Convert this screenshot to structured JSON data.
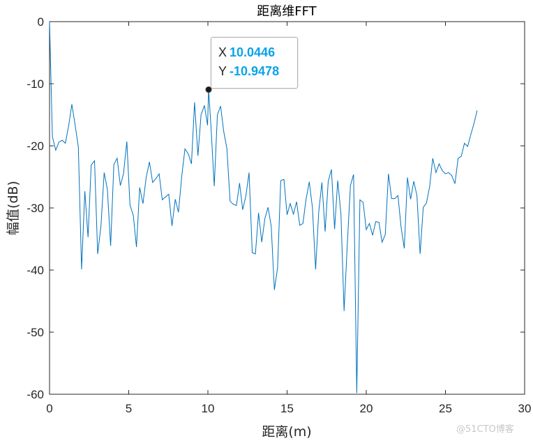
{
  "chart_data": {
    "type": "line",
    "title": "距离维FFT",
    "xlabel": "距离(m)",
    "ylabel": "幅值(dB)",
    "xlim": [
      0,
      30
    ],
    "ylim": [
      -60,
      0
    ],
    "xticks": [
      0,
      5,
      10,
      15,
      20,
      25,
      30
    ],
    "yticks": [
      0,
      -10,
      -20,
      -30,
      -40,
      -50,
      -60
    ],
    "grid": false,
    "line_color": "#0072bd",
    "series": [
      {
        "values": [
          [
            0,
            0
          ],
          [
            0.18,
            -18.5
          ],
          [
            0.39,
            -20.7
          ],
          [
            0.59,
            -19.4
          ],
          [
            0.8,
            -19.1
          ],
          [
            1.0,
            -19.6
          ],
          [
            1.21,
            -16.7
          ],
          [
            1.41,
            -13.3
          ],
          [
            1.61,
            -16.5
          ],
          [
            1.82,
            -20.2
          ],
          [
            2.02,
            -39.9
          ],
          [
            2.23,
            -27.3
          ],
          [
            2.43,
            -34.7
          ],
          [
            2.63,
            -23.1
          ],
          [
            2.84,
            -22.4
          ],
          [
            3.04,
            -37.4
          ],
          [
            3.25,
            -32.8
          ],
          [
            3.45,
            -24.3
          ],
          [
            3.65,
            -27.0
          ],
          [
            3.86,
            -36.1
          ],
          [
            4.06,
            -23.0
          ],
          [
            4.27,
            -22.0
          ],
          [
            4.47,
            -26.4
          ],
          [
            4.67,
            -24.5
          ],
          [
            4.88,
            -19.3
          ],
          [
            5.08,
            -29.5
          ],
          [
            5.29,
            -31.2
          ],
          [
            5.49,
            -36.3
          ],
          [
            5.69,
            -26.7
          ],
          [
            5.9,
            -29.3
          ],
          [
            6.1,
            -25.1
          ],
          [
            6.31,
            -22.6
          ],
          [
            6.51,
            -25.9
          ],
          [
            6.71,
            -25.3
          ],
          [
            6.92,
            -24.5
          ],
          [
            7.12,
            -28.7
          ],
          [
            7.33,
            -28.2
          ],
          [
            7.53,
            -27.8
          ],
          [
            7.73,
            -32.9
          ],
          [
            7.94,
            -28.6
          ],
          [
            8.14,
            -30.7
          ],
          [
            8.35,
            -24.9
          ],
          [
            8.55,
            -20.5
          ],
          [
            8.76,
            -21.3
          ],
          [
            8.96,
            -22.9
          ],
          [
            9.16,
            -13.0
          ],
          [
            9.37,
            -21.6
          ],
          [
            9.57,
            -15.0
          ],
          [
            9.78,
            -13.5
          ],
          [
            9.98,
            -16.7
          ],
          [
            10.0446,
            -10.9478
          ],
          [
            10.2,
            -17.1
          ],
          [
            10.4,
            -26.5
          ],
          [
            10.6,
            -15.0
          ],
          [
            10.8,
            -13.6
          ],
          [
            11.0,
            -17.7
          ],
          [
            11.2,
            -20.4
          ],
          [
            11.4,
            -28.9
          ],
          [
            11.6,
            -29.4
          ],
          [
            11.8,
            -29.6
          ],
          [
            12.0,
            -26.0
          ],
          [
            12.2,
            -30.3
          ],
          [
            12.4,
            -28.0
          ],
          [
            12.6,
            -24.3
          ],
          [
            12.8,
            -37.2
          ],
          [
            13.0,
            -37.4
          ],
          [
            13.2,
            -30.8
          ],
          [
            13.4,
            -35.5
          ],
          [
            13.6,
            -31.7
          ],
          [
            13.8,
            -29.9
          ],
          [
            14.0,
            -33.0
          ],
          [
            14.2,
            -43.2
          ],
          [
            14.4,
            -39.6
          ],
          [
            14.6,
            -25.6
          ],
          [
            14.8,
            -25.4
          ],
          [
            15.0,
            -31.1
          ],
          [
            15.2,
            -29.3
          ],
          [
            15.4,
            -31.0
          ],
          [
            15.6,
            -29.0
          ],
          [
            15.8,
            -32.8
          ],
          [
            16.0,
            -32.5
          ],
          [
            16.2,
            -28.6
          ],
          [
            16.4,
            -25.8
          ],
          [
            16.6,
            -29.9
          ],
          [
            16.8,
            -39.9
          ],
          [
            17.0,
            -30.6
          ],
          [
            17.2,
            -25.9
          ],
          [
            17.4,
            -33.8
          ],
          [
            17.6,
            -25.7
          ],
          [
            17.8,
            -23.8
          ],
          [
            18.0,
            -33.4
          ],
          [
            18.2,
            -25.6
          ],
          [
            18.4,
            -31.0
          ],
          [
            18.6,
            -46.6
          ],
          [
            18.8,
            -35.9
          ],
          [
            19.0,
            -26.4
          ],
          [
            19.2,
            -24.6
          ],
          [
            19.4,
            -59.8
          ],
          [
            19.6,
            -28.7
          ],
          [
            19.8,
            -29.1
          ],
          [
            20.0,
            -33.5
          ],
          [
            20.2,
            -32.5
          ],
          [
            20.4,
            -34.4
          ],
          [
            20.6,
            -32.2
          ],
          [
            20.8,
            -32.3
          ],
          [
            21.0,
            -35.5
          ],
          [
            21.2,
            -34.3
          ],
          [
            21.4,
            -24.5
          ],
          [
            21.6,
            -28.5
          ],
          [
            21.8,
            -28.5
          ],
          [
            22.0,
            -28.0
          ],
          [
            22.2,
            -33.1
          ],
          [
            22.4,
            -36.5
          ],
          [
            22.6,
            -25.1
          ],
          [
            22.8,
            -28.6
          ],
          [
            23.0,
            -25.7
          ],
          [
            23.2,
            -28.0
          ],
          [
            23.4,
            -37.4
          ],
          [
            23.6,
            -29.9
          ],
          [
            23.8,
            -29.2
          ],
          [
            24.0,
            -26.6
          ],
          [
            24.2,
            -22.0
          ],
          [
            24.4,
            -24.3
          ],
          [
            24.6,
            -22.9
          ],
          [
            24.8,
            -24.0
          ],
          [
            25.0,
            -24.5
          ],
          [
            25.2,
            -24.3
          ],
          [
            25.4,
            -24.8
          ],
          [
            25.6,
            -26.1
          ],
          [
            25.8,
            -22.0
          ],
          [
            26.0,
            -21.7
          ],
          [
            26.2,
            -19.6
          ],
          [
            26.4,
            -20.1
          ],
          [
            26.6,
            -18.2
          ],
          [
            26.8,
            -16.4
          ],
          [
            27.0,
            -14.3
          ]
        ]
      }
    ],
    "datatip": {
      "x_label": "X",
      "x_value": "10.0446",
      "y_label": "Y",
      "y_value": "-10.9478",
      "point": [
        10.0446,
        -10.9478
      ]
    }
  },
  "watermark": "@51CTO博客"
}
